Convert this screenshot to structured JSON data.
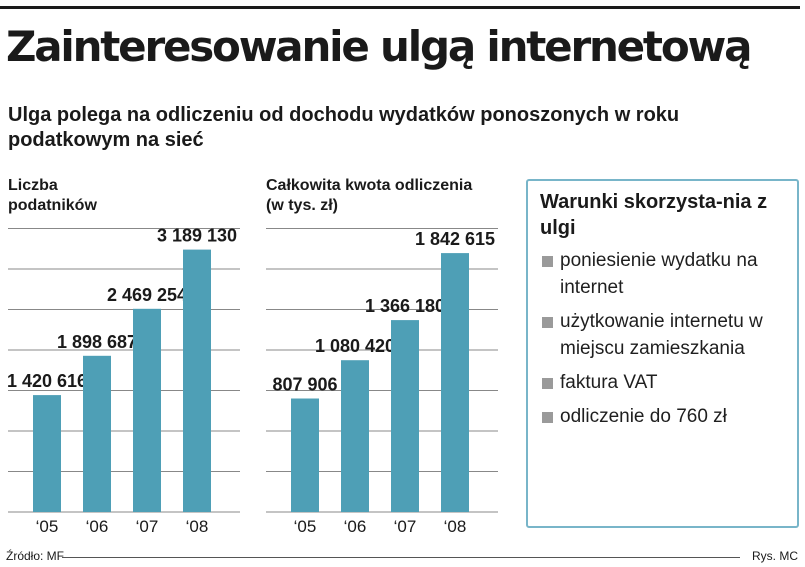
{
  "header": {
    "title": "Zainteresowanie ulgą internetową",
    "subtitle": "Ulga polega na odliczeniu od dochodu wydatków ponoszonych w roku podatkowym na sieć"
  },
  "colors": {
    "bar": "#4e9fb6",
    "grid": "#888888",
    "panel_border": "#78b5c9",
    "bullet": "#9a9a9a"
  },
  "chart_data": [
    {
      "type": "bar",
      "title": "Liczba podatników",
      "categories": [
        "‘05",
        "‘06",
        "‘07",
        "‘08"
      ],
      "values": [
        1420616,
        1898687,
        2469254,
        3189130
      ],
      "value_labels": [
        "1 420 616",
        "1 898 687",
        "2 469 254",
        "3 189 130"
      ],
      "ylim": [
        0,
        3500000
      ],
      "grid": true,
      "bar_color": "#4e9fb6"
    },
    {
      "type": "bar",
      "title": "Całkowita kwota odliczenia (w tys. zł)",
      "categories": [
        "‘05",
        "‘06",
        "‘07",
        "‘08"
      ],
      "values": [
        807906,
        1080420,
        1366180,
        1842615
      ],
      "value_labels": [
        "807 906",
        "1 080 420",
        "1 366 180",
        "1 842 615"
      ],
      "ylim": [
        0,
        2050000
      ],
      "grid": true,
      "bar_color": "#4e9fb6"
    }
  ],
  "panel": {
    "title": "Warunki skorzysta-nia z ulgi",
    "items": [
      "poniesienie wydatku na internet",
      "użytkowanie internetu w miejscu zamieszkania",
      "faktura VAT",
      "odliczenie do 760 zł"
    ]
  },
  "footer": {
    "source": "Źródło: MF",
    "credit": "Rys. MC"
  }
}
